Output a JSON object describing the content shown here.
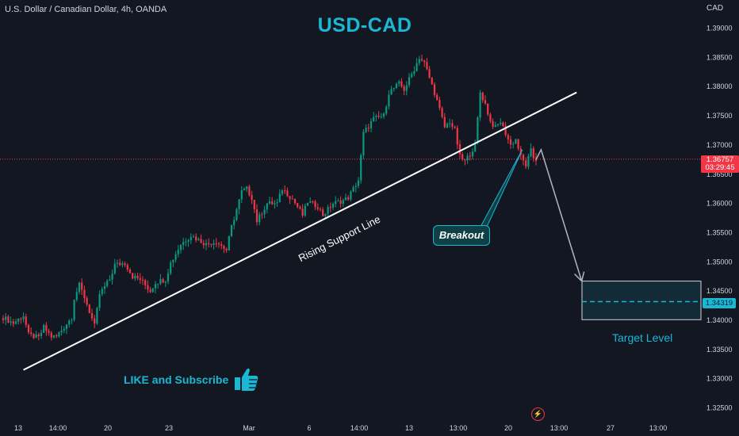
{
  "header": {
    "symbol_title": "U.S. Dollar / Canadian Dollar, 4h, OANDA",
    "main_title": "USD-CAD",
    "currency": "CAD"
  },
  "price_tag": {
    "price": "1.36757",
    "countdown": "03:29:45"
  },
  "target_tag": {
    "price": "1.34319"
  },
  "annotations": {
    "support_line_label": "Rising Support Line",
    "breakout_label": "Breakout",
    "target_label": "Target Level",
    "like_label": "LIKE and Subscribe",
    "like_icon": "thumbs-up-icon",
    "bolt_icon": "lightning-icon"
  },
  "colors": {
    "up": "#089981",
    "down": "#f23645",
    "accent": "#1ab8d4",
    "background": "#131722"
  },
  "chart_data": {
    "type": "candlestick",
    "title": "USD-CAD",
    "ylim": [
      1.3225,
      1.3925
    ],
    "y_ticks": [
      "1.39000",
      "1.38500",
      "1.38000",
      "1.37500",
      "1.37000",
      "1.36500",
      "1.36000",
      "1.35500",
      "1.35000",
      "1.34500",
      "1.34000",
      "1.33500",
      "1.33000",
      "1.32500"
    ],
    "x_ticks": [
      "13",
      "14:00",
      "20",
      "23",
      "Mar",
      "6",
      "14:00",
      "13",
      "13:00",
      "20",
      "13:00",
      "27",
      "13:00"
    ],
    "close_path": [
      [
        0,
        1.3405
      ],
      [
        4,
        1.3395
      ],
      [
        8,
        1.3408
      ],
      [
        10,
        1.3375
      ],
      [
        14,
        1.337
      ],
      [
        16,
        1.3388
      ],
      [
        19,
        1.3372
      ],
      [
        21,
        1.3372
      ],
      [
        27,
        1.3405
      ],
      [
        28,
        1.3438
      ],
      [
        30,
        1.346
      ],
      [
        32,
        1.344
      ],
      [
        36,
        1.339
      ],
      [
        38,
        1.3445
      ],
      [
        42,
        1.347
      ],
      [
        44,
        1.3495
      ],
      [
        48,
        1.3498
      ],
      [
        51,
        1.3475
      ],
      [
        54,
        1.347
      ],
      [
        58,
        1.345
      ],
      [
        60,
        1.3465
      ],
      [
        64,
        1.347
      ],
      [
        66,
        1.3498
      ],
      [
        70,
        1.353
      ],
      [
        74,
        1.3545
      ],
      [
        76,
        1.354
      ],
      [
        80,
        1.353
      ],
      [
        84,
        1.3535
      ],
      [
        88,
        1.352
      ],
      [
        90,
        1.356
      ],
      [
        94,
        1.362
      ],
      [
        96,
        1.3625
      ],
      [
        98,
        1.361
      ],
      [
        100,
        1.357
      ],
      [
        104,
        1.36
      ],
      [
        108,
        1.36
      ],
      [
        110,
        1.3625
      ],
      [
        114,
        1.3608
      ],
      [
        118,
        1.358
      ],
      [
        120,
        1.3603
      ],
      [
        124,
        1.3595
      ],
      [
        126,
        1.358
      ],
      [
        130,
        1.36
      ],
      [
        134,
        1.3605
      ],
      [
        136,
        1.361
      ],
      [
        140,
        1.364
      ],
      [
        142,
        1.372
      ],
      [
        146,
        1.3745
      ],
      [
        150,
        1.375
      ],
      [
        152,
        1.379
      ],
      [
        156,
        1.3805
      ],
      [
        158,
        1.3795
      ],
      [
        162,
        1.383
      ],
      [
        164,
        1.385
      ],
      [
        166,
        1.384
      ],
      [
        168,
        1.3815
      ],
      [
        170,
        1.379
      ],
      [
        172,
        1.376
      ],
      [
        174,
        1.373
      ],
      [
        176,
        1.374
      ],
      [
        178,
        1.3725
      ],
      [
        180,
        1.368
      ],
      [
        182,
        1.3672
      ],
      [
        184,
        1.3685
      ],
      [
        186,
        1.37
      ],
      [
        188,
        1.379
      ],
      [
        190,
        1.377
      ],
      [
        192,
        1.374
      ],
      [
        194,
        1.373
      ],
      [
        196,
        1.374
      ],
      [
        198,
        1.372
      ],
      [
        200,
        1.37
      ],
      [
        202,
        1.371
      ],
      [
        204,
        1.368
      ],
      [
        206,
        1.3665
      ],
      [
        208,
        1.369
      ],
      [
        209,
        1.3678
      ],
      [
        210,
        1.3675
      ]
    ],
    "support_line": [
      [
        8,
        1.3315
      ],
      [
        226,
        1.379
      ]
    ],
    "projection": [
      [
        210,
        1.3675
      ],
      [
        212,
        1.3692
      ],
      [
        228,
        1.3467
      ]
    ],
    "target_level": 1.34319,
    "target_zone": [
      1.3401,
      1.3467
    ],
    "current_price": 1.36757
  }
}
